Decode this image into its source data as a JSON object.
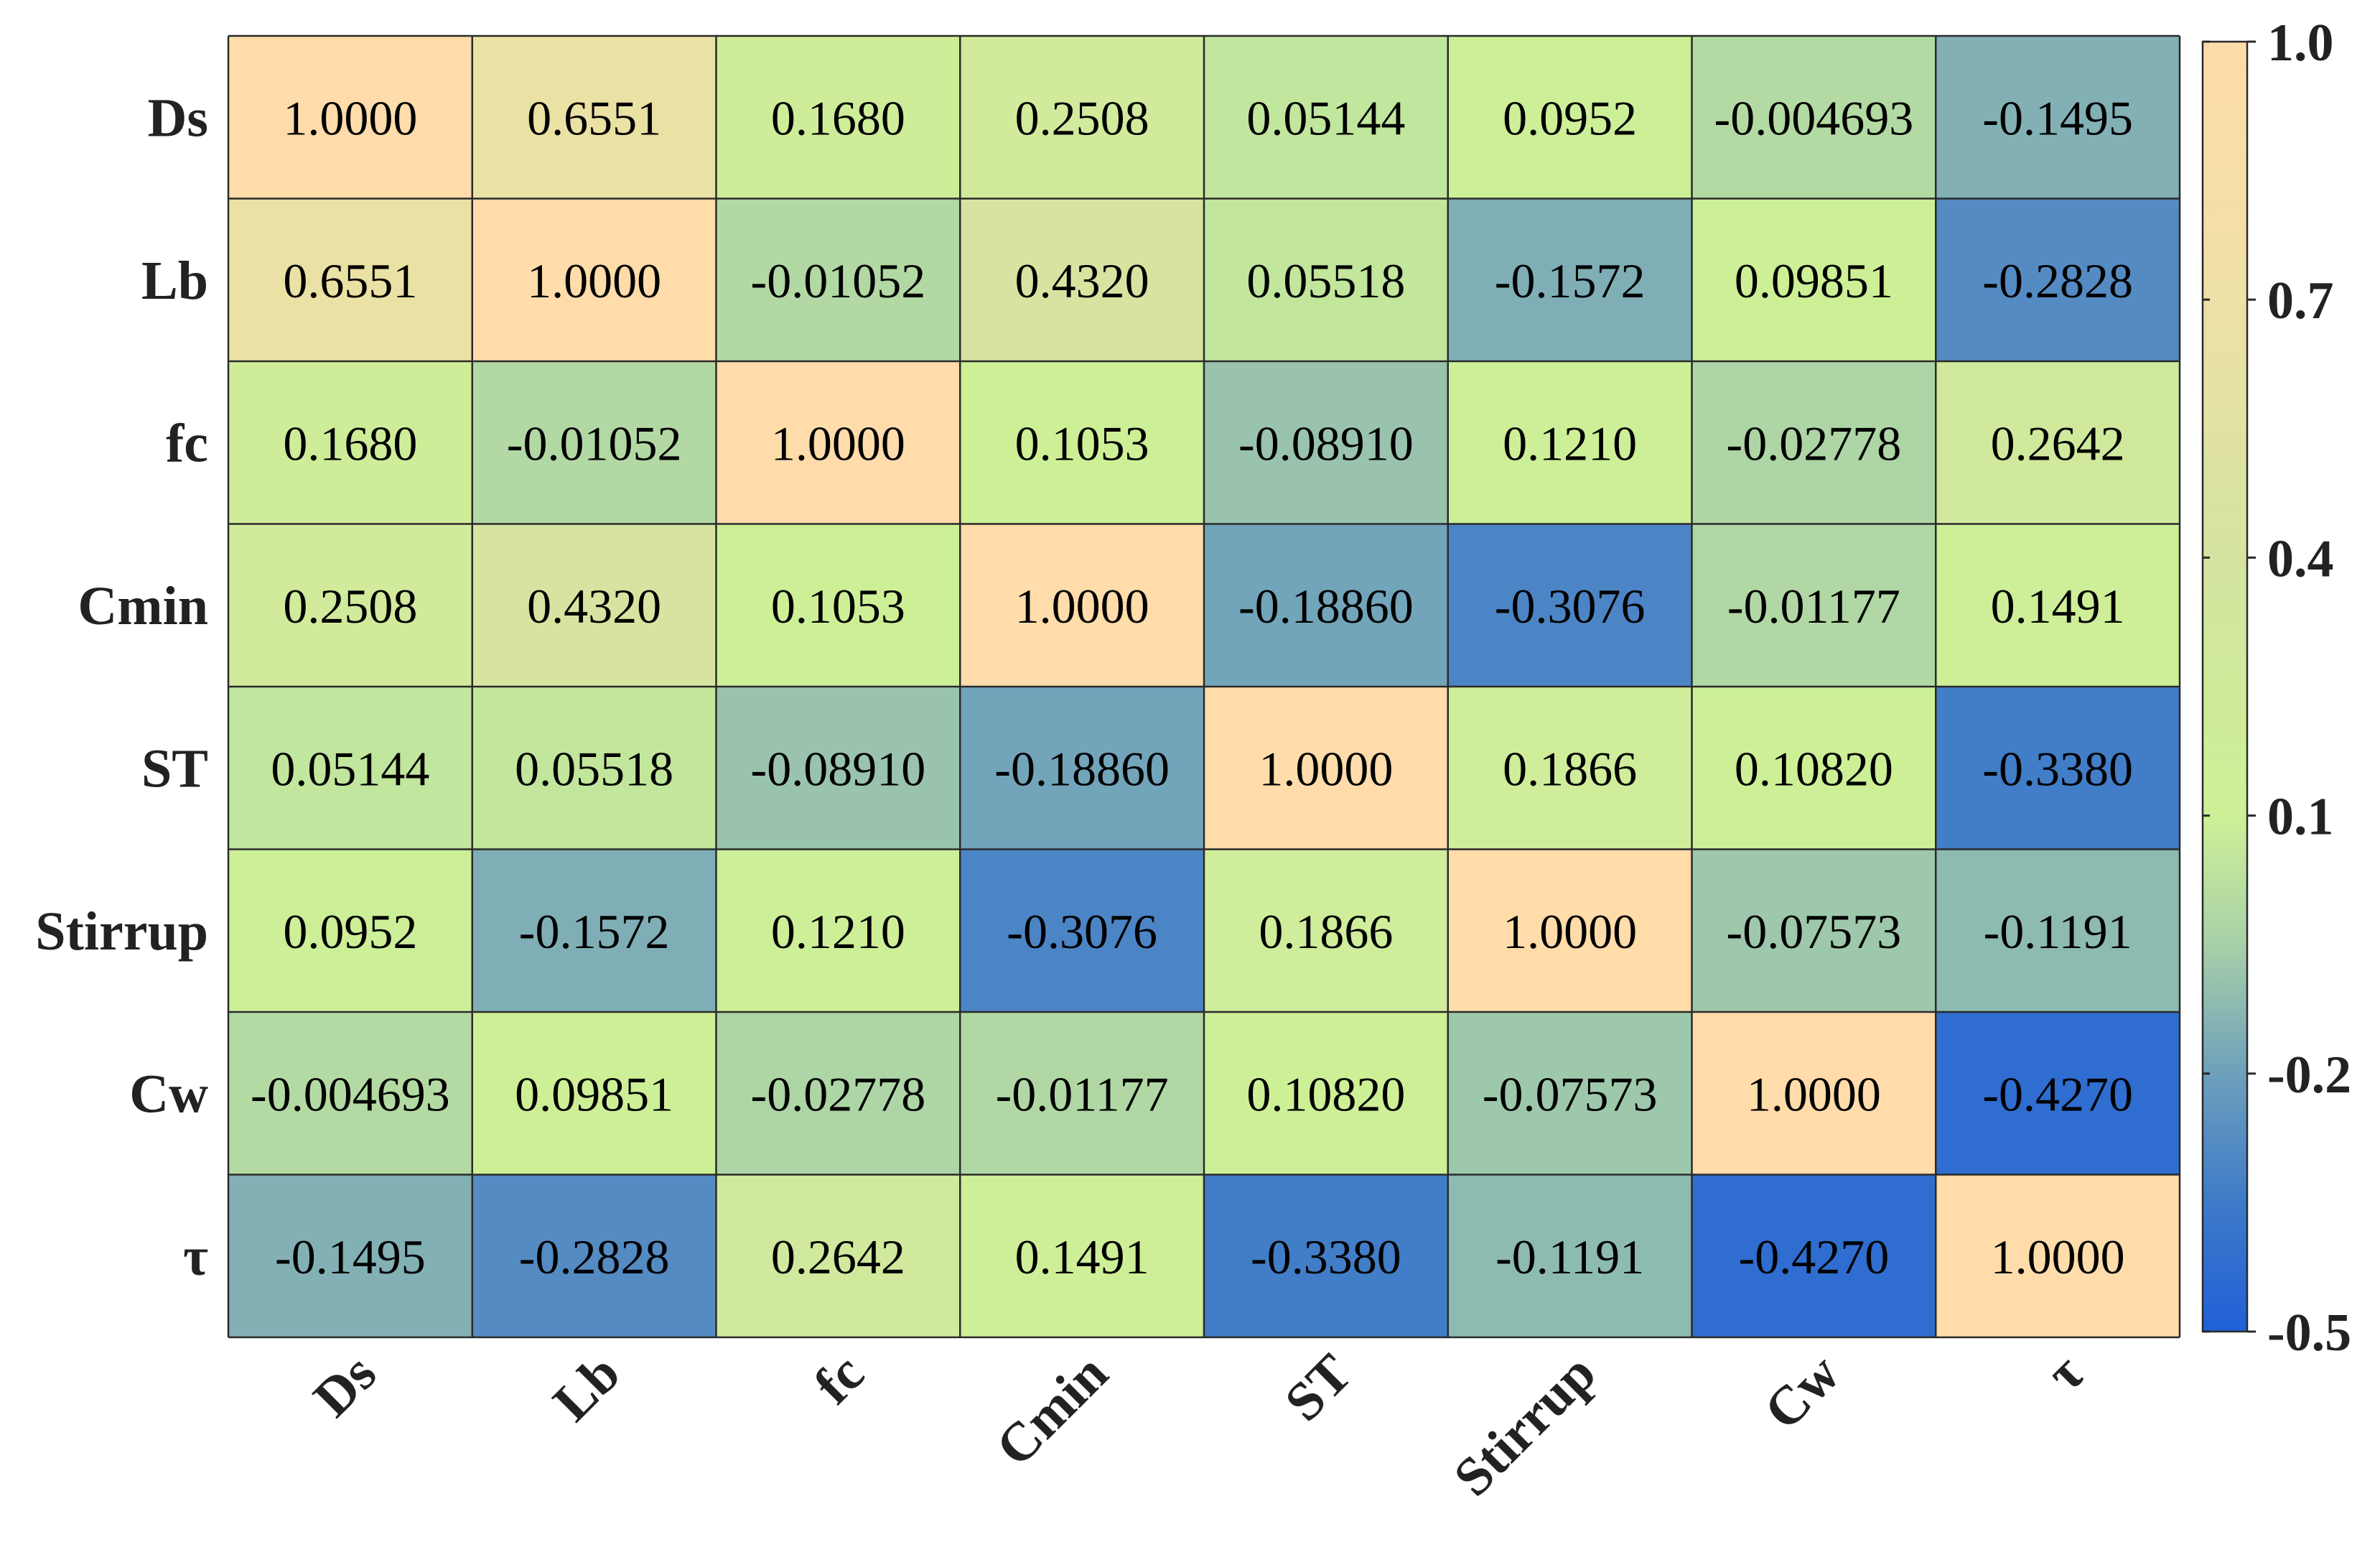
{
  "chart_data": {
    "type": "heatmap",
    "title": "",
    "xlabel": "",
    "ylabel": "",
    "row_labels": [
      "Ds",
      "Lb",
      "fc",
      "Cmin",
      "ST",
      "Stirrup",
      "Cw",
      "τ"
    ],
    "col_labels": [
      "Ds",
      "Lb",
      "fc",
      "Cmin",
      "ST",
      "Stirrup",
      "Cw",
      "τ"
    ],
    "cells": [
      [
        "1.0000",
        "0.6551",
        "0.1680",
        "0.2508",
        "0.05144",
        "0.0952",
        "-0.004693",
        "-0.1495"
      ],
      [
        "0.6551",
        "1.0000",
        "-0.01052",
        "0.4320",
        "0.05518",
        "-0.1572",
        "0.09851",
        "-0.2828"
      ],
      [
        "0.1680",
        "-0.01052",
        "1.0000",
        "0.1053",
        "-0.08910",
        "0.1210",
        "-0.02778",
        "0.2642"
      ],
      [
        "0.2508",
        "0.4320",
        "0.1053",
        "1.0000",
        "-0.18860",
        "-0.3076",
        "-0.01177",
        "0.1491"
      ],
      [
        "0.05144",
        "0.05518",
        "-0.08910",
        "-0.18860",
        "1.0000",
        "0.1866",
        "0.10820",
        "-0.3380"
      ],
      [
        "0.0952",
        "-0.1572",
        "0.1210",
        "-0.3076",
        "0.1866",
        "1.0000",
        "-0.07573",
        "-0.1191"
      ],
      [
        "-0.004693",
        "0.09851",
        "-0.02778",
        "-0.01177",
        "0.10820",
        "-0.07573",
        "1.0000",
        "-0.4270"
      ],
      [
        "-0.1495",
        "-0.2828",
        "0.2642",
        "0.1491",
        "-0.3380",
        "-0.1191",
        "-0.4270",
        "1.0000"
      ]
    ],
    "colorbar": {
      "range": [
        -0.5,
        1.0
      ],
      "ticks": [
        "1.0",
        "0.7",
        "0.4",
        "0.1",
        "-0.2",
        "-0.5"
      ]
    },
    "colormap": [
      {
        "v": -0.5,
        "color": "#2060d8"
      },
      {
        "v": -0.35,
        "color": "#3e7ac8"
      },
      {
        "v": -0.2,
        "color": "#6ea0bc"
      },
      {
        "v": -0.05,
        "color": "#a8d0a8"
      },
      {
        "v": 0.1,
        "color": "#cdf097"
      },
      {
        "v": 0.4,
        "color": "#d4e4a0"
      },
      {
        "v": 0.7,
        "color": "#eee0a6"
      },
      {
        "v": 1.0,
        "color": "#ffdcaa"
      }
    ]
  }
}
